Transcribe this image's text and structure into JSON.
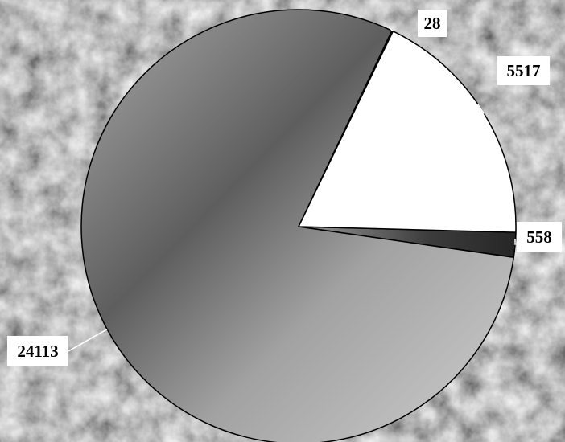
{
  "chart_data": {
    "type": "pie",
    "title": "",
    "slices": [
      {
        "value": 558,
        "label": "558",
        "color": "#444444"
      },
      {
        "value": 24113,
        "label": "24113",
        "color": "#8c8c8c"
      },
      {
        "value": 28,
        "label": "28",
        "color": "#555555"
      },
      {
        "value": 5517,
        "label": "5517",
        "color": "#ffffff"
      }
    ],
    "data_labels": true,
    "legend": "none",
    "background": "texture-photo-gray"
  }
}
